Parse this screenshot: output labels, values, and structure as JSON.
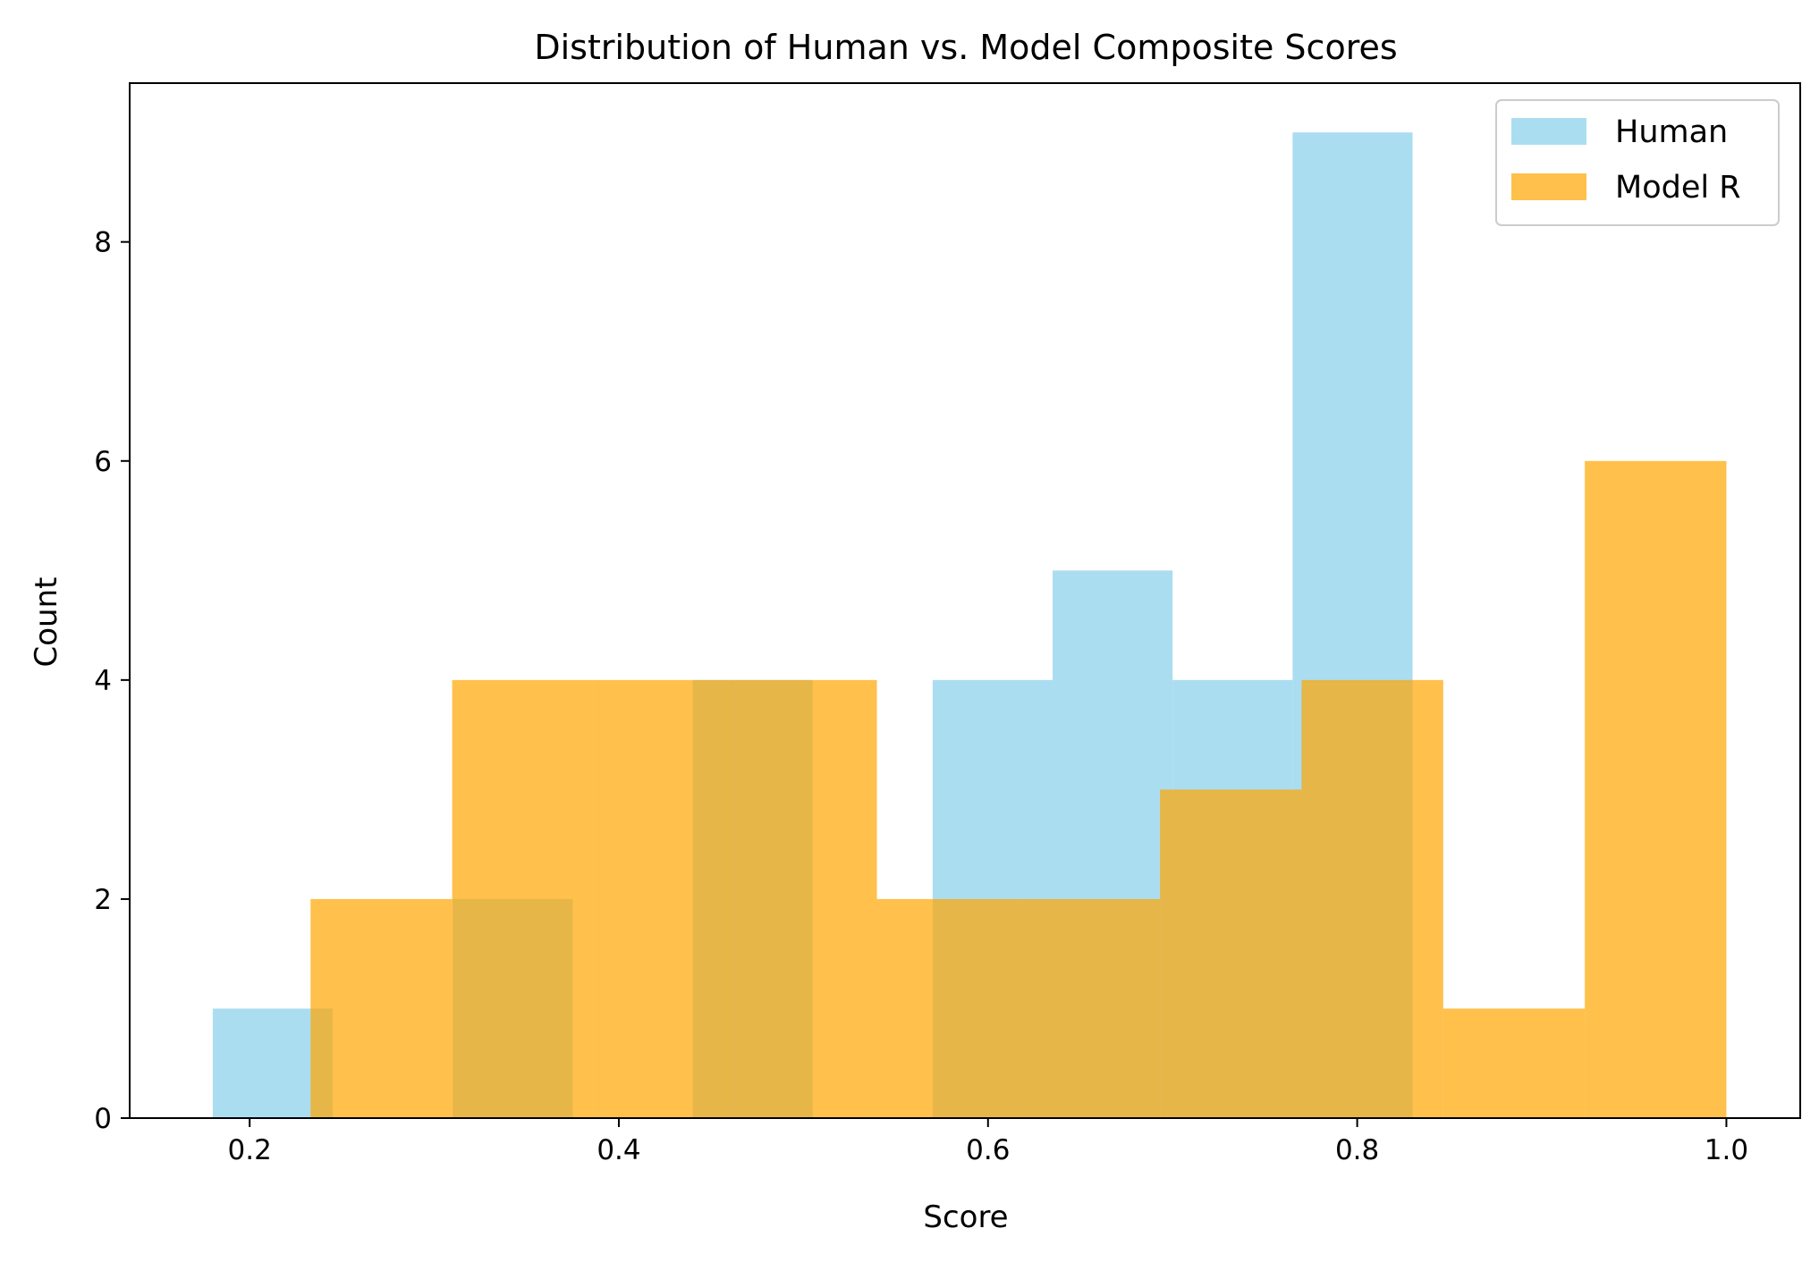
{
  "chart_data": {
    "type": "histogram",
    "title": "Distribution of Human vs. Model Composite Scores",
    "xlabel": "Score",
    "ylabel": "Count",
    "xlim": [
      0.135,
      1.04
    ],
    "ylim": [
      0,
      9.45
    ],
    "xticks": [
      "0.2",
      "0.4",
      "0.6",
      "0.8",
      "1.0"
    ],
    "yticks": [
      "0",
      "2",
      "4",
      "6",
      "8"
    ],
    "grid": false,
    "legend": {
      "position": "top-right",
      "entries": [
        "Human",
        "Model R"
      ]
    },
    "series": [
      {
        "name": "Human",
        "color": "#87ceeb",
        "opacity": 0.7,
        "bin_edges": [
          0.18,
          0.245,
          0.31,
          0.375,
          0.44,
          0.505,
          0.57,
          0.635,
          0.7,
          0.765,
          0.83
        ],
        "counts": [
          1,
          0,
          2,
          0,
          4,
          0,
          4,
          5,
          4,
          9
        ]
      },
      {
        "name": "Model R",
        "color": "#ffa500",
        "opacity": 0.7,
        "bin_edges": [
          0.233,
          0.3097,
          0.3864,
          0.4631,
          0.5398,
          0.6165,
          0.6932,
          0.7699,
          0.8466,
          0.9233,
          1.0
        ],
        "counts": [
          2,
          4,
          4,
          4,
          2,
          2,
          3,
          4,
          1,
          6
        ]
      }
    ]
  }
}
